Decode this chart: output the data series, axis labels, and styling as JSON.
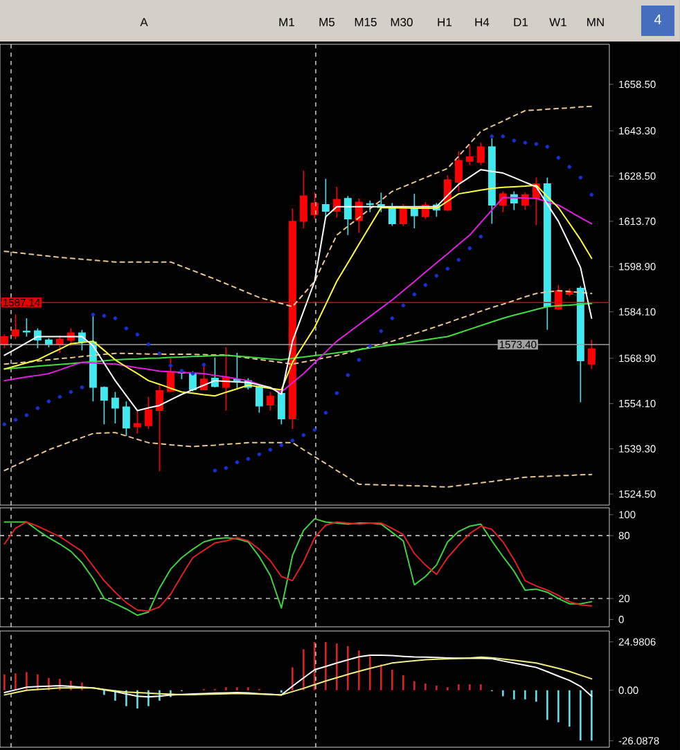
{
  "chart_data": [
    {
      "type": "candlestick",
      "categories": [
        null,
        null,
        null,
        null,
        null,
        null,
        null,
        null,
        null,
        null,
        null,
        null,
        null,
        null,
        null,
        null,
        null,
        null,
        null,
        null,
        null,
        null,
        null,
        null,
        null,
        null,
        null,
        null,
        null,
        null,
        null,
        null,
        null,
        null,
        null,
        null,
        null,
        null,
        null,
        null,
        null,
        null,
        null,
        null,
        null,
        null,
        null,
        null,
        null,
        null,
        null,
        null,
        null,
        null
      ],
      "ohlc": [
        [
          1573.3,
          1576.7,
          1572.2,
          1576.0
        ],
        [
          1576.2,
          1583.2,
          1575.2,
          1578.2
        ],
        [
          1577.8,
          1582.0,
          1576.0,
          1577.5
        ],
        [
          1577.9,
          1578.7,
          1572.2,
          1574.9
        ],
        [
          1574.9,
          1575.5,
          1572.5,
          1573.3
        ],
        [
          1573.3,
          1576.3,
          1570.7,
          1575.2
        ],
        [
          1574.8,
          1578.7,
          1573.0,
          1577.2
        ],
        [
          1577.2,
          1578.2,
          1571.5,
          1574.2
        ],
        [
          1574.2,
          1583.2,
          1554.8,
          1559.4
        ],
        [
          1559.4,
          1559.7,
          1547.3,
          1555.2
        ],
        [
          1555.9,
          1557.9,
          1547.6,
          1552.6
        ],
        [
          1553.0,
          1554.8,
          1543.5,
          1546.1
        ],
        [
          1546.5,
          1551.8,
          1544.3,
          1547.6
        ],
        [
          1546.9,
          1556.3,
          1545.8,
          1552.1
        ],
        [
          1551.8,
          1560.1,
          1531.9,
          1558.3
        ],
        [
          1558.1,
          1569.2,
          1557.9,
          1564.3
        ],
        [
          1564.3,
          1565.1,
          1562.1,
          1564.1
        ],
        [
          1563.9,
          1564.7,
          1558.1,
          1558.6
        ],
        [
          1558.6,
          1566.6,
          1558.6,
          1562.1
        ],
        [
          1562.4,
          1569.2,
          1559.4,
          1559.7
        ],
        [
          1559.4,
          1572.5,
          1551.8,
          1562.7
        ],
        [
          1562.0,
          1570.7,
          1559.0,
          1561.6
        ],
        [
          1561.6,
          1562.4,
          1558.7,
          1559.4
        ],
        [
          1559.7,
          1560.1,
          1551.1,
          1553.3
        ],
        [
          1553.6,
          1557.9,
          1551.8,
          1556.6
        ],
        [
          1557.4,
          1558.1,
          1547.3,
          1549.1
        ],
        [
          1549.1,
          1617.9,
          1545.8,
          1613.7
        ],
        [
          1613.7,
          1630.3,
          1611.4,
          1622.0
        ],
        [
          1615.9,
          1623.1,
          1614.5,
          1619.7
        ],
        [
          1619.2,
          1627.6,
          1614.5,
          1617.0
        ],
        [
          1617.0,
          1625.0,
          1614.9,
          1620.9
        ],
        [
          1621.2,
          1622.0,
          1609.2,
          1614.5
        ],
        [
          1614.0,
          1621.2,
          1609.9,
          1620.0
        ],
        [
          1619.5,
          1620.5,
          1616.7,
          1619.2
        ],
        [
          1619.2,
          1623.1,
          1616.7,
          1618.2
        ],
        [
          1618.5,
          1619.7,
          1612.2,
          1612.9
        ],
        [
          1612.9,
          1619.4,
          1612.2,
          1618.2
        ],
        [
          1617.9,
          1622.7,
          1611.4,
          1615.5
        ],
        [
          1615.2,
          1620.0,
          1614.5,
          1619.0
        ],
        [
          1619.0,
          1619.7,
          1615.2,
          1617.4
        ],
        [
          1617.4,
          1628.8,
          1617.0,
          1627.3
        ],
        [
          1626.5,
          1636.6,
          1623.5,
          1633.6
        ],
        [
          1633.3,
          1638.6,
          1632.1,
          1634.8
        ],
        [
          1633.0,
          1639.4,
          1632.1,
          1638.1
        ],
        [
          1638.1,
          1640.8,
          1612.9,
          1619.0
        ],
        [
          1619.0,
          1623.5,
          1616.7,
          1622.7
        ],
        [
          1622.4,
          1623.5,
          1617.4,
          1619.7
        ],
        [
          1619.0,
          1623.1,
          1617.4,
          1622.4
        ],
        [
          1621.2,
          1628.0,
          1612.5,
          1626.0
        ],
        [
          1626.0,
          1628.0,
          1578.2,
          1585.8
        ],
        [
          1585.0,
          1592.9,
          1584.7,
          1591.0
        ],
        [
          1589.8,
          1591.8,
          1589.2,
          1590.8
        ],
        [
          1591.8,
          1592.5,
          1554.5,
          1568.1
        ],
        [
          1567.0,
          1575.0,
          1565.4,
          1572.0
        ]
      ],
      "colors": [
        "#ff0000",
        "#ff0000",
        "#40e8f0",
        "#40e8f0",
        "#40e8f0",
        "#ff0000",
        "#ff0000",
        "#40e8f0",
        "#40e8f0",
        "#40e8f0",
        "#40e8f0",
        "#40e8f0",
        "#ff0000",
        "#ff0000",
        "#ff0000",
        "#ff0000",
        "#40e8f0",
        "#40e8f0",
        "#ff0000",
        "#40e8f0",
        "#ff0000",
        "#40e8f0",
        "#40e8f0",
        "#40e8f0",
        "#ff0000",
        "#40e8f0",
        "#ff0000",
        "#ff0000",
        "#ff0000",
        "#40e8f0",
        "#ff0000",
        "#40e8f0",
        "#ff0000",
        "#40e8f0",
        "#40e8f0",
        "#40e8f0",
        "#ff0000",
        "#40e8f0",
        "#ff0000",
        "#40e8f0",
        "#ff0000",
        "#ff0000",
        "#ff0000",
        "#ff0000",
        "#40e8f0",
        "#ff0000",
        "#40e8f0",
        "#ff0000",
        "#ff0000",
        "#40e8f0",
        "#ff0000",
        "#ff0000",
        "#40e8f0",
        "#ff0000"
      ],
      "series": [
        {
          "type": "line",
          "line_style": "dashed",
          "color": "#e8c890",
          "values": [
            1603.9,
            1603.5,
            1603.1,
            1602.7,
            1602.3,
            1601.9,
            1601.6,
            1601.3,
            1601,
            1600.7,
            1600.4,
            1600.4,
            1600.4,
            1600.4,
            1600.4,
            1600.4,
            1599,
            1597.6,
            1596.2,
            1594.8,
            1593.3,
            1591.8,
            1590.3,
            1588.8,
            1587.8,
            1586.8,
            1585.8,
            1589.9,
            1594.1,
            1601.7,
            1609.2,
            1612.1,
            1614.9,
            1617.8,
            1620.6,
            1623.5,
            1625,
            1626.5,
            1628,
            1629.5,
            1631,
            1635,
            1639.1,
            1643.1,
            1644.8,
            1646.5,
            1648.2,
            1649.9,
            1650.1,
            1650.4,
            1650.6,
            1650.8,
            1651.1,
            1651.3
          ]
        },
        {
          "type": "line",
          "line_style": "dashed",
          "color": "#e8c890",
          "values": [
            1567,
            1567.3,
            1567.7,
            1568,
            1568.4,
            1568.8,
            1569.1,
            1569.5,
            1569.8,
            1570.2,
            1570.5,
            1570.5,
            1570.4,
            1570.3,
            1570.3,
            1570.2,
            1570.2,
            1570.2,
            1570.1,
            1570,
            1570,
            1569.5,
            1569,
            1568.5,
            1568,
            1567.5,
            1567,
            1567.7,
            1568.4,
            1569.1,
            1569.8,
            1570.7,
            1571.7,
            1572.6,
            1573.6,
            1574.5,
            1575.7,
            1576.9,
            1578.1,
            1579.3,
            1580.5,
            1581.8,
            1583,
            1584.3,
            1585.5,
            1586.6,
            1587.8,
            1589,
            1590.1,
            1590.6,
            1591,
            1590.7,
            1590.4,
            1590.1
          ]
        },
        {
          "type": "line",
          "line_style": "dashed",
          "color": "#e8c890",
          "values": [
            1532.2,
            1533.9,
            1535.6,
            1537.3,
            1539.0,
            1540.3,
            1541.7,
            1543.0,
            1544.3,
            1544.5,
            1544.6,
            1543.5,
            1542.4,
            1541.3,
            1541.0,
            1540.6,
            1540.3,
            1540.0,
            1540.3,
            1540.5,
            1540.8,
            1541.0,
            1541.3,
            1541.3,
            1541.3,
            1541.3,
            1541.3,
            1539.0,
            1536.7,
            1534.5,
            1532.2,
            1530.0,
            1527.7,
            1527.6,
            1527.5,
            1527.4,
            1527.3,
            1527.2,
            1527.1,
            1526.9,
            1526.8,
            1527.3,
            1527.7,
            1528.2,
            1528.6,
            1529.1,
            1529.5,
            1530.0,
            1530.2,
            1530.3,
            1530.5,
            1530.6,
            1530.8,
            1530.9
          ]
        },
        {
          "type": "line",
          "line_style": "solid",
          "color": "#40e040",
          "values": [
            1565.4,
            1565.7,
            1566.0,
            1566.3,
            1566.6,
            1566.9,
            1567.2,
            1567.5,
            1567.8,
            1568.1,
            1568.4,
            1568.6,
            1568.7,
            1568.9,
            1569.0,
            1569.2,
            1569.3,
            1569.5,
            1569.6,
            1569.8,
            1569.9,
            1569.6,
            1569.3,
            1569.0,
            1568.7,
            1568.4,
            1568.9,
            1569.3,
            1569.8,
            1570.2,
            1570.7,
            1571.2,
            1571.7,
            1572.3,
            1572.8,
            1573.3,
            1573.8,
            1574.4,
            1574.9,
            1575.5,
            1576.0,
            1577.2,
            1578.4,
            1579.6,
            1580.8,
            1582.0,
            1583.0,
            1583.9,
            1584.9,
            1585.8,
            1586.1,
            1586.3,
            1586.6,
            1586.8
          ]
        },
        {
          "type": "line",
          "line_style": "solid",
          "color": "#e020e0",
          "values": [
            1561.6,
            1562.2,
            1562.8,
            1563.3,
            1563.9,
            1565.1,
            1566.4,
            1567.6,
            1567.4,
            1567.2,
            1567,
            1566.4,
            1565.8,
            1565.3,
            1564.7,
            1564.5,
            1564.3,
            1564.1,
            1563.9,
            1563.3,
            1562.8,
            1562.2,
            1561.6,
            1560.4,
            1559.1,
            1557.9,
            1560.9,
            1563.9,
            1567.4,
            1571,
            1574.5,
            1577.2,
            1579.9,
            1582.6,
            1585.3,
            1588,
            1591,
            1594,
            1597.1,
            1600.1,
            1603.1,
            1606.2,
            1609.2,
            1613.3,
            1617.4,
            1621.5,
            1621.4,
            1621.3,
            1621.2,
            1620.1,
            1619,
            1617,
            1614.9,
            1612.9
          ]
        },
        {
          "type": "line",
          "line_style": "solid",
          "color": "#ffff40",
          "values": [
            1565.4,
            1566.4,
            1567.4,
            1568.4,
            1570.2,
            1571.9,
            1573.7,
            1574.1,
            1574.5,
            1571.5,
            1568.4,
            1566.1,
            1563.9,
            1561.6,
            1560.4,
            1559.1,
            1557.9,
            1557.5,
            1557,
            1556.6,
            1557.8,
            1558.9,
            1560.1,
            1559.6,
            1559.1,
            1558.6,
            1567.6,
            1573.3,
            1579,
            1586.5,
            1594.1,
            1600.1,
            1606.2,
            1612.2,
            1618.2,
            1618.1,
            1618.1,
            1618,
            1618,
            1617.9,
            1620.3,
            1622.7,
            1623.3,
            1623.9,
            1624.5,
            1624.8,
            1625,
            1625.2,
            1625.5,
            1621.8,
            1618.2,
            1613,
            1607.7,
            1601.6
          ]
        },
        {
          "type": "line",
          "line_style": "solid",
          "color": "#ffffff",
          "values": [
            1569.9,
            1571.9,
            1574,
            1576,
            1576,
            1576,
            1576,
            1576,
            1573,
            1567.3,
            1561.6,
            1556.7,
            1551.8,
            1552.7,
            1553.5,
            1555.3,
            1557.1,
            1558.6,
            1560.1,
            1561.6,
            1561.4,
            1561.2,
            1561,
            1560.2,
            1559.4,
            1557.1,
            1574.5,
            1584.3,
            1594.1,
            1615.2,
            1618.5,
            1618.5,
            1618.5,
            1618.5,
            1618.5,
            1618.5,
            1618.5,
            1618.5,
            1618.5,
            1618.5,
            1622.2,
            1625.8,
            1628.2,
            1630.6,
            1630,
            1629.5,
            1628,
            1626.5,
            1625,
            1619.3,
            1613.7,
            1606.2,
            1598.6,
            1582
          ]
        },
        {
          "type": "scatter",
          "color": "#1830d0",
          "values": [
            1547.3,
            1548.8,
            1550.3,
            1552.6,
            1554.8,
            1556.3,
            1557.9,
            1559.4,
            1583.2,
            1582.8,
            1582.0,
            1578.7,
            1576.7,
            1573.5,
            1570.5,
            1566.5,
            1564.8,
            1563.9,
            1566.8,
            1532.2,
            1533.0,
            1534.9,
            1536.0,
            1537.5,
            1539.0,
            1540.5,
            1542.0,
            1543.8,
            1545.5,
            1551.1,
            1557.5,
            1563.4,
            1568.4,
            1572.9,
            1577.8,
            1582.0,
            1586.2,
            1589.8,
            1592.9,
            1595.9,
            1598.2,
            1601.1,
            1604.9,
            1608.7,
            1641.5,
            1641.5,
            1640.1,
            1639.4,
            1639.0,
            1638.1,
            1634.5,
            1631.5,
            1628.0,
            1622.4
          ]
        }
      ],
      "ylim": [
        1520.9,
        1671.6
      ],
      "yticks": [
        {
          "value": 1658.5,
          "label": "1658.50"
        },
        {
          "value": 1643.3,
          "label": "1643.30"
        },
        {
          "value": 1628.5,
          "label": "1628.50"
        },
        {
          "value": 1613.7,
          "label": "1613.70"
        },
        {
          "value": 1598.9,
          "label": "1598.90"
        },
        {
          "value": 1584.1,
          "label": "1584.10"
        },
        {
          "value": 1568.9,
          "label": "1568.90"
        },
        {
          "value": 1554.1,
          "label": "1554.10"
        },
        {
          "value": 1539.3,
          "label": "1539.30"
        },
        {
          "value": 1524.5,
          "label": "1524.50"
        }
      ],
      "tick_labels": "y",
      "ref_lines": [
        {
          "axis": "y",
          "value": 1587.14,
          "label": "1587.14",
          "color": "#e00000",
          "line_style": "solid"
        },
        {
          "axis": "y",
          "value": 1573.4,
          "label": "1573.40",
          "color": "#a0a0a0",
          "line_style": "solid"
        }
      ],
      "annotations": [
        "A",
        "M1",
        "M5",
        "M15",
        "M30",
        "H1",
        "H4",
        "D1",
        "W1",
        "MN",
        "4"
      ]
    },
    {
      "type": "line",
      "categories": [
        null,
        null,
        null,
        null,
        null,
        null,
        null,
        null,
        null,
        null,
        null,
        null,
        null,
        null,
        null,
        null,
        null,
        null,
        null,
        null,
        null,
        null,
        null,
        null,
        null,
        null,
        null,
        null,
        null,
        null,
        null,
        null,
        null,
        null,
        null,
        null,
        null,
        null,
        null,
        null,
        null,
        null,
        null,
        null,
        null,
        null,
        null,
        null,
        null,
        null,
        null,
        null,
        null,
        null
      ],
      "series": [
        {
          "type": "line",
          "color": "#40d040",
          "values": [
            93,
            93,
            93,
            85,
            78,
            72,
            65,
            54,
            39,
            20,
            15,
            10,
            4,
            7,
            30,
            48,
            59,
            67,
            74,
            77,
            78,
            77,
            74,
            60,
            42,
            11,
            61,
            85,
            96,
            93,
            92,
            91,
            92,
            92,
            91,
            83,
            75,
            33,
            41,
            52,
            74,
            84,
            89,
            91,
            75,
            60,
            46,
            28,
            29,
            26,
            20,
            15,
            15,
            17
          ]
        },
        {
          "type": "line",
          "color": "#e02020",
          "values": [
            72,
            87,
            93,
            89,
            84,
            79,
            72,
            65,
            51,
            37,
            26,
            16,
            9,
            8,
            12,
            24,
            42,
            59,
            66,
            73,
            75,
            78,
            75,
            67,
            56,
            41,
            37,
            55,
            78,
            90,
            93,
            92,
            91,
            92,
            92,
            87,
            81,
            63,
            52,
            43,
            59,
            71,
            82,
            89,
            86,
            74,
            57,
            37,
            32,
            28,
            23,
            17,
            14,
            13
          ]
        }
      ],
      "ylim": [
        -7,
        106.5
      ],
      "yticks": [
        0,
        20,
        80,
        100
      ],
      "tick_labels": "y",
      "ref_lines": [
        {
          "axis": "y",
          "value": 20,
          "color": "#c0c0c0",
          "line_style": "dashed"
        },
        {
          "axis": "y",
          "value": 80,
          "color": "#c0c0c0",
          "line_style": "dashed"
        }
      ]
    },
    {
      "type": "bar",
      "categories": [
        null,
        null,
        null,
        null,
        null,
        null,
        null,
        null,
        null,
        null,
        null,
        null,
        null,
        null,
        null,
        null,
        null,
        null,
        null,
        null,
        null,
        null,
        null,
        null,
        null,
        null,
        null,
        null,
        null,
        null,
        null,
        null,
        null,
        null,
        null,
        null,
        null,
        null,
        null,
        null,
        null,
        null,
        null,
        null,
        null,
        null,
        null,
        null,
        null,
        null,
        null,
        null,
        null,
        null
      ],
      "values": [
        8.2,
        8.7,
        9.4,
        8.2,
        6.4,
        5.9,
        4.9,
        4.0,
        null,
        -2.4,
        -5.4,
        -8.2,
        -9.4,
        -8.2,
        -5.4,
        -3.5,
        -0.5,
        null,
        0.7,
        0.7,
        1.6,
        1.6,
        1.6,
        0.7,
        null,
        -1.2,
        11.8,
        21.2,
        24.9,
        24.9,
        24.2,
        22.8,
        20.5,
        17.6,
        13.4,
        10.6,
        7.8,
        4.7,
        3.5,
        2.4,
        1.6,
        3.1,
        3.1,
        3.1,
        -0.5,
        -3.1,
        -4.7,
        -4.7,
        -5.9,
        -15.3,
        -16.5,
        -18.8,
        -25.9,
        -26.0
      ],
      "colors": [
        "#e02020",
        "#e02020",
        "#e02020",
        "#e02020",
        "#e02020",
        "#e02020",
        "#e02020",
        "#e02020",
        "#e02020",
        "#60e0f0",
        "#60e0f0",
        "#60e0f0",
        "#60e0f0",
        "#60e0f0",
        "#60e0f0",
        "#60e0f0",
        "#60e0f0",
        "#e02020",
        "#e02020",
        "#e02020",
        "#e02020",
        "#e02020",
        "#e02020",
        "#e02020",
        "#e02020",
        "#60e0f0",
        "#e02020",
        "#e02020",
        "#e02020",
        "#e02020",
        "#e02020",
        "#e02020",
        "#e02020",
        "#e02020",
        "#e02020",
        "#e02020",
        "#e02020",
        "#e02020",
        "#e02020",
        "#e02020",
        "#e02020",
        "#e02020",
        "#e02020",
        "#e02020",
        "#60e0f0",
        "#60e0f0",
        "#60e0f0",
        "#60e0f0",
        "#60e0f0",
        "#60e0f0",
        "#60e0f0",
        "#60e0f0",
        "#60e0f0",
        "#60e0f0"
      ],
      "series": [
        {
          "type": "line",
          "color": "#ffffff",
          "values": [
            -1.2,
            0.2,
            1.6,
            1.9,
            2.1,
            2.4,
            2,
            1.6,
            1.2,
            0.2,
            -0.7,
            -1.9,
            -3.1,
            -3.4,
            -3.1,
            -2.4,
            -2.2,
            -1.9,
            -1.7,
            -1.5,
            -1.4,
            -1.2,
            -1.4,
            -1.8,
            -2.1,
            -2.4,
            2.1,
            6.4,
            10.6,
            12.3,
            14.1,
            15.7,
            17.3,
            18.1,
            18.1,
            17.9,
            17.5,
            17.2,
            17.1,
            16.9,
            16.7,
            16.6,
            16.5,
            16.5,
            16.3,
            15.1,
            14,
            12.9,
            11.8,
            9.6,
            7.3,
            5.1,
            2,
            -3.1
          ]
        },
        {
          "type": "line",
          "color": "#f0f080",
          "values": [
            -2.4,
            -1.2,
            0,
            0.4,
            0.8,
            1.2,
            1.2,
            1.2,
            1.2,
            0.4,
            -0.3,
            -0.9,
            -1.2,
            -1.5,
            -1.8,
            -2,
            -2.3,
            -2.3,
            -2.1,
            -2,
            -1.8,
            -1.6,
            -1.8,
            -2,
            -2.2,
            -2.4,
            -0.7,
            1,
            2.9,
            4.8,
            6.5,
            8.2,
            9.8,
            11.3,
            12.7,
            14.1,
            14.7,
            15.2,
            15.8,
            16,
            16.2,
            16.4,
            16.7,
            17.1,
            16.8,
            16.1,
            15.5,
            14.8,
            14.1,
            12.7,
            11.3,
            9.7,
            7.8,
            5.9
          ]
        }
      ],
      "ylim": [
        -29.4,
        30.6
      ],
      "yticks": [
        {
          "value": 24.9806,
          "label": "24.9806"
        },
        {
          "value": 0,
          "label": "0.00"
        },
        {
          "value": -26.0878,
          "label": "-26.0878"
        }
      ],
      "tick_labels": "y"
    }
  ]
}
